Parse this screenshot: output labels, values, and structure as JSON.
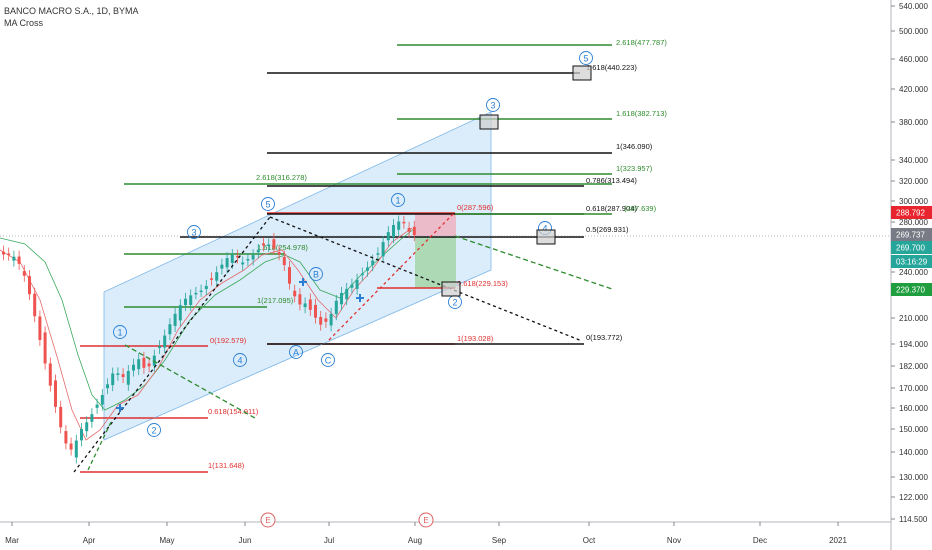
{
  "header": {
    "title": "BANCO MACRO S.A., 1D, BYMA",
    "indicator": "MA Cross"
  },
  "chart_data": {
    "type": "candlestick",
    "title": "BANCO MACRO S.A., 1D, BYMA",
    "indicator": "MA Cross",
    "y_axis": {
      "scale": "log",
      "ticks": [
        "540.000",
        "500.000",
        "460.000",
        "420.000",
        "380.000",
        "340.000",
        "320.000",
        "300.000",
        "280.000",
        "260.000",
        "240.000",
        "225.000",
        "210.000",
        "194.000",
        "182.000",
        "170.000",
        "160.000",
        "150.000",
        "140.000",
        "130.000",
        "122.000",
        "114.500"
      ]
    },
    "x_axis": {
      "ticks": [
        "Mar",
        "Apr",
        "May",
        "Jun",
        "Jul",
        "Aug",
        "Sep",
        "Oct",
        "Nov",
        "Dec",
        "2021"
      ]
    },
    "price_tags": [
      {
        "value": "288.792",
        "color": "#e8242e"
      },
      {
        "value": "269.737",
        "color": "#787b86"
      },
      {
        "value": "269.700",
        "color": "#26a69a"
      },
      {
        "value": "03:16:29",
        "color": "#26a69a"
      },
      {
        "value": "229.370",
        "color": "#1e9e3e"
      }
    ],
    "fib_labels": [
      {
        "text": "2.618(477.787)",
        "color": "#2e8b2e"
      },
      {
        "text": "1.618(440.223)",
        "color": "#111111"
      },
      {
        "text": "1.618(382.713)",
        "color": "#2e8b2e"
      },
      {
        "text": "1(346.090)",
        "color": "#111111"
      },
      {
        "text": "1(323.957)",
        "color": "#2e8b2e"
      },
      {
        "text": "0.786(313.494)",
        "color": "#111111"
      },
      {
        "text": "2.618(316.278)",
        "color": "#2e8b2e"
      },
      {
        "text": "0(287.596)",
        "color": "#e03030"
      },
      {
        "text": "0.618(287.904)",
        "color": "#111111"
      },
      {
        "text": "(287.639)",
        "color": "#2e8b2e"
      },
      {
        "text": "0.5(269.931)",
        "color": "#111111"
      },
      {
        "text": "1.618(254.978)",
        "color": "#2e8b2e"
      },
      {
        "text": "0.618(229.153)",
        "color": "#e03030"
      },
      {
        "text": "1(217.095)",
        "color": "#2e8b2e"
      },
      {
        "text": "0(192.579)",
        "color": "#e03030"
      },
      {
        "text": "1(193.028)",
        "color": "#e03030"
      },
      {
        "text": "0(193.772)",
        "color": "#111111"
      },
      {
        "text": "0.618(154.911)",
        "color": "#e03030"
      },
      {
        "text": "1(131.648)",
        "color": "#e03030"
      }
    ],
    "wave_labels": [
      "1",
      "2",
      "3",
      "4",
      "5",
      "A",
      "B",
      "C",
      "1",
      "2",
      "3",
      "4",
      "5"
    ],
    "event_markers": [
      "E",
      "E"
    ],
    "colors": {
      "up": "#26a69a",
      "down": "#ef5350",
      "channel": "#cfe6f8",
      "wave": "#2a7fd4"
    }
  }
}
